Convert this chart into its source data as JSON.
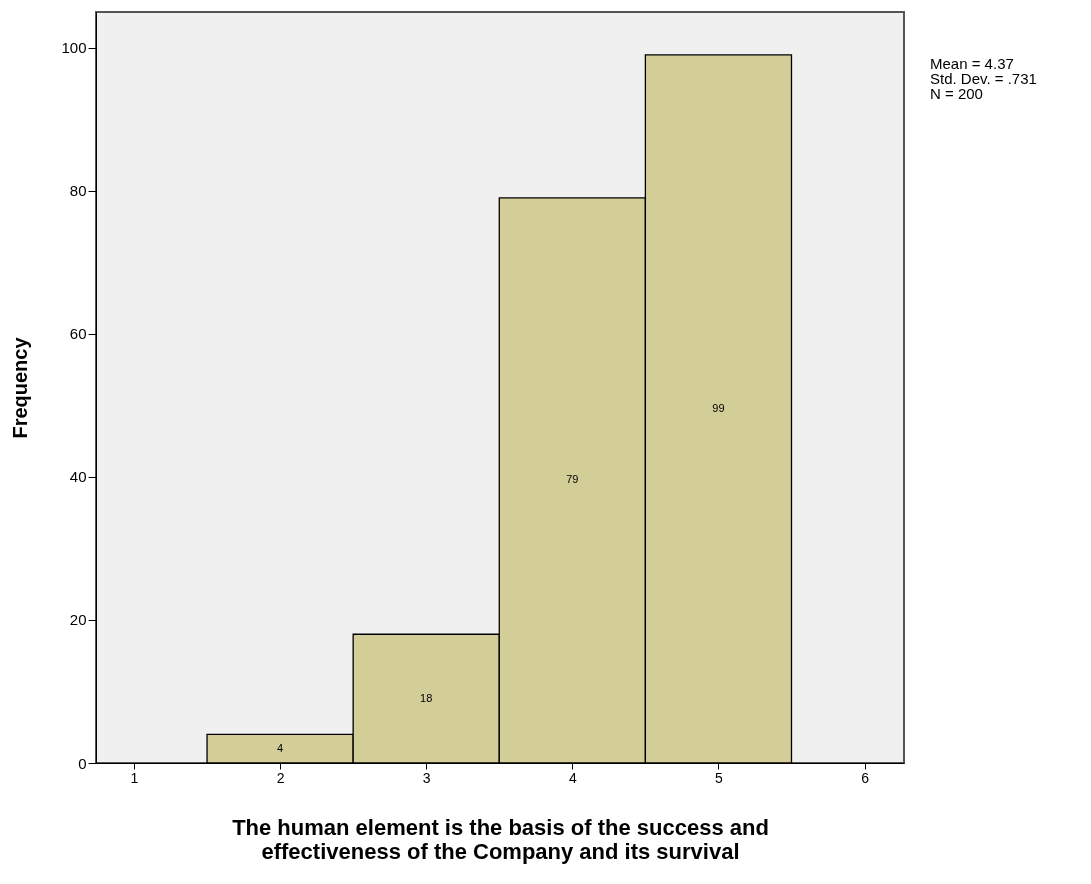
{
  "chart_data": {
    "type": "histogram",
    "xlabel": "The human element is the basis of the success and effectiveness of the Company and its survival",
    "ylabel": "Frequency",
    "bins": [
      1.5,
      2.5,
      3.5,
      4.5,
      5.5
    ],
    "values": [
      4,
      18,
      79,
      99
    ],
    "color": "#d3ce97",
    "data_labels": true,
    "xlim": [
      0.74,
      6.27
    ],
    "xticks": [
      1,
      2,
      3,
      4,
      5,
      6
    ],
    "ylim": [
      0,
      105
    ],
    "yticks": [
      0,
      20,
      40,
      60,
      80,
      100
    ],
    "grid": false,
    "annotations": [
      "Mean = 4.37",
      "Std. Dev. = .731",
      "N = 200"
    ]
  }
}
